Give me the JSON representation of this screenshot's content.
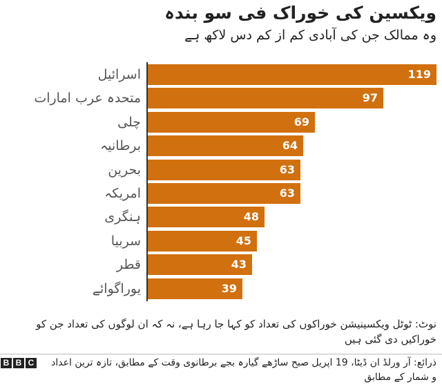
{
  "header": {
    "title": "ویکسین کی خوراک فی سو بندہ",
    "subtitle": "وہ ممالک جن کی آبادی کم از کم دس لاکھ ہے"
  },
  "chart_data": {
    "type": "bar",
    "orientation": "horizontal",
    "title": "ویکسین کی خوراک فی سو بندہ",
    "subtitle": "وہ ممالک جن کی آبادی کم از کم دس لاکھ ہے",
    "xlabel": "",
    "ylabel": "",
    "categories": [
      "اسرائیل",
      "متحدہ عرب امارات",
      "چلی",
      "برطانیہ",
      "بحرین",
      "امریکہ",
      "ہنگری",
      "سربیا",
      "قطر",
      "یوراگوائے"
    ],
    "values": [
      119,
      97,
      69,
      64,
      63,
      63,
      48,
      45,
      43,
      39
    ],
    "xlim": [
      0,
      119
    ],
    "grid": false,
    "legend": "none",
    "data_labels": true,
    "bar_color": "#D1700E"
  },
  "bars": [
    {
      "label": "اسرائیل",
      "value": "119"
    },
    {
      "label": "متحدہ عرب امارات",
      "value": "97"
    },
    {
      "label": "چلی",
      "value": "69"
    },
    {
      "label": "برطانیہ",
      "value": "64"
    },
    {
      "label": "بحرین",
      "value": "63"
    },
    {
      "label": "امریکہ",
      "value": "63"
    },
    {
      "label": "ہنگری",
      "value": "48"
    },
    {
      "label": "سربیا",
      "value": "45"
    },
    {
      "label": "قطر",
      "value": "43"
    },
    {
      "label": "یوراگوائے",
      "value": "39"
    }
  ],
  "footer": {
    "note": "نوٹ: ٹوٹل ویکسینیشن خوراکوں کی تعداد کو کہا جا رہا ہے، نہ کہ ان لوگوں کی تعداد جن کو خوراکیں دی گئی ہیں",
    "source": "ذرائع: آر ورلڈ ان ڈیٹا، 19 اپریل صبح ساڑھے گیارہ بجے برطانوی وقت کے مطابق، تازہ ترین اعداد و شمار کے مطابق",
    "logo": [
      "B",
      "B",
      "C"
    ]
  }
}
